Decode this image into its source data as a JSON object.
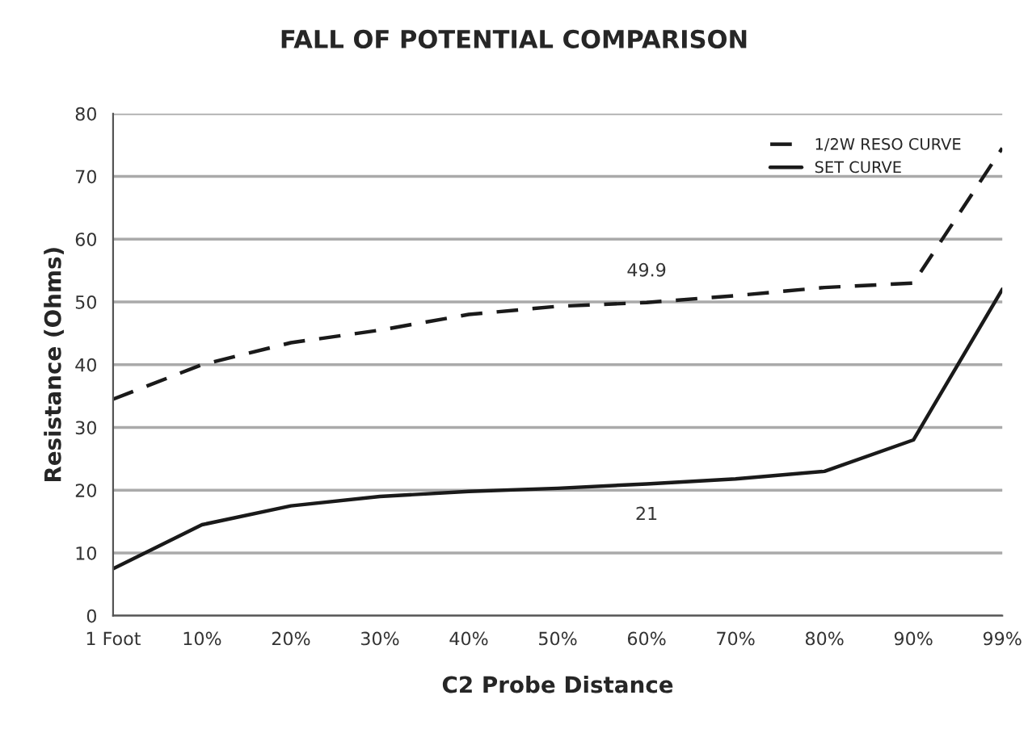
{
  "chart_data": {
    "type": "line",
    "title": "FALL OF POTENTIAL COMPARISON",
    "xlabel": "C2 Probe Distance",
    "ylabel": "Resistance (Ohms)",
    "categories": [
      "1 Foot",
      "10%",
      "20%",
      "30%",
      "40%",
      "50%",
      "60%",
      "70%",
      "80%",
      "90%",
      "99%"
    ],
    "series": [
      {
        "name": "1/2W RESO CURVE",
        "color": "#1a1a1a",
        "line_style": "dashed",
        "values": [
          34.5,
          40,
          43.5,
          45.5,
          48,
          49.3,
          49.9,
          51,
          52.3,
          53,
          74.5
        ],
        "value_labels": [
          null,
          null,
          null,
          null,
          null,
          null,
          "49.9",
          null,
          null,
          null,
          null
        ]
      },
      {
        "name": "SET CURVE",
        "color": "#1a1a1a",
        "line_style": "solid",
        "values": [
          7.5,
          14.5,
          17.5,
          19,
          19.8,
          20.3,
          21,
          21.8,
          23,
          28,
          52
        ],
        "value_labels": [
          null,
          null,
          null,
          null,
          null,
          null,
          "21",
          null,
          null,
          null,
          null
        ]
      }
    ],
    "ylim": [
      0,
      80
    ],
    "yticks": [
      0,
      10,
      20,
      30,
      40,
      50,
      60,
      70,
      80
    ],
    "grid": "y",
    "legend": "top right"
  }
}
